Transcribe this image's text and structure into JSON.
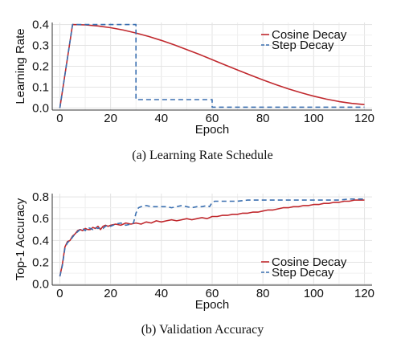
{
  "chart_data": [
    {
      "type": "line",
      "caption": "(a) Learning Rate Schedule",
      "xlabel": "Epoch",
      "ylabel": "Learning Rate",
      "xlim": [
        -3,
        123
      ],
      "ylim": [
        -0.01,
        0.41
      ],
      "xticks": [
        0,
        20,
        40,
        60,
        80,
        100,
        120
      ],
      "yticks": [
        0.0,
        0.1,
        0.2,
        0.3,
        0.4
      ],
      "yticklabels": [
        "0.0",
        "0.1",
        "0.2",
        "0.3",
        "0.4"
      ],
      "grid": true,
      "legend": "top-right",
      "series": [
        {
          "name": "Cosine Decay",
          "color": "#c0282d",
          "style": "solid",
          "x": [
            0,
            5,
            10,
            15,
            20,
            25,
            30,
            35,
            40,
            45,
            50,
            55,
            60,
            65,
            70,
            75,
            80,
            85,
            90,
            95,
            100,
            105,
            110,
            115,
            120
          ],
          "y": [
            0.0,
            0.4,
            0.3983,
            0.3933,
            0.3851,
            0.3738,
            0.3597,
            0.3429,
            0.3239,
            0.3029,
            0.2803,
            0.2565,
            0.232,
            0.2071,
            0.1823,
            0.158,
            0.1346,
            0.1124,
            0.0918,
            0.0731,
            0.0566,
            0.0424,
            0.0309,
            0.0221,
            0.0162
          ]
        },
        {
          "name": "Step Decay",
          "color": "#3a6fb0",
          "style": "dashed",
          "x": [
            0,
            5,
            30,
            30,
            60,
            60,
            120
          ],
          "y": [
            0.0,
            0.4,
            0.4,
            0.04,
            0.04,
            0.004,
            0.004
          ]
        }
      ]
    },
    {
      "type": "line",
      "caption": "(b) Validation Accuracy",
      "xlabel": "Epoch",
      "ylabel": "Top-1 Accuracy",
      "xlim": [
        -3,
        123
      ],
      "ylim": [
        -0.01,
        0.83
      ],
      "xticks": [
        0,
        20,
        40,
        60,
        80,
        100,
        120
      ],
      "yticks": [
        0.0,
        0.2,
        0.4,
        0.6,
        0.8
      ],
      "yticklabels": [
        "0.0",
        "0.2",
        "0.4",
        "0.6",
        "0.8"
      ],
      "grid": true,
      "legend": "bottom-right",
      "series": [
        {
          "name": "Cosine Decay",
          "color": "#c0282d",
          "style": "solid",
          "x": [
            0,
            1,
            2,
            3,
            4,
            5,
            6,
            7,
            8,
            9,
            10,
            11,
            12,
            13,
            14,
            15,
            16,
            17,
            18,
            19,
            20,
            22,
            24,
            26,
            28,
            30,
            32,
            34,
            36,
            38,
            40,
            42,
            44,
            46,
            48,
            50,
            52,
            54,
            56,
            58,
            60,
            62,
            64,
            66,
            68,
            70,
            72,
            74,
            76,
            78,
            80,
            82,
            84,
            86,
            88,
            90,
            92,
            94,
            96,
            98,
            100,
            102,
            104,
            106,
            108,
            110,
            112,
            114,
            116,
            118,
            120
          ],
          "y": [
            0.07,
            0.18,
            0.34,
            0.39,
            0.4,
            0.44,
            0.46,
            0.49,
            0.5,
            0.49,
            0.51,
            0.5,
            0.5,
            0.52,
            0.51,
            0.53,
            0.5,
            0.53,
            0.54,
            0.53,
            0.54,
            0.55,
            0.54,
            0.56,
            0.55,
            0.56,
            0.55,
            0.57,
            0.56,
            0.58,
            0.57,
            0.58,
            0.59,
            0.58,
            0.59,
            0.6,
            0.59,
            0.6,
            0.61,
            0.6,
            0.62,
            0.62,
            0.63,
            0.63,
            0.64,
            0.64,
            0.65,
            0.65,
            0.66,
            0.66,
            0.67,
            0.68,
            0.68,
            0.69,
            0.7,
            0.7,
            0.71,
            0.71,
            0.72,
            0.72,
            0.73,
            0.73,
            0.74,
            0.74,
            0.75,
            0.75,
            0.76,
            0.76,
            0.77,
            0.77,
            0.77
          ]
        },
        {
          "name": "Step Decay",
          "color": "#3a6fb0",
          "style": "dashed",
          "x": [
            0,
            1,
            2,
            3,
            4,
            5,
            6,
            7,
            8,
            9,
            10,
            11,
            12,
            13,
            14,
            15,
            16,
            17,
            18,
            19,
            20,
            22,
            24,
            26,
            28,
            29,
            30,
            31,
            32,
            34,
            36,
            38,
            40,
            42,
            44,
            46,
            48,
            50,
            52,
            54,
            56,
            58,
            59,
            60,
            61,
            62,
            66,
            70,
            74,
            78,
            82,
            86,
            90,
            94,
            98,
            102,
            106,
            110,
            114,
            118,
            120
          ],
          "y": [
            0.07,
            0.17,
            0.33,
            0.38,
            0.4,
            0.43,
            0.46,
            0.48,
            0.5,
            0.51,
            0.49,
            0.52,
            0.51,
            0.5,
            0.52,
            0.51,
            0.52,
            0.51,
            0.53,
            0.54,
            0.53,
            0.55,
            0.56,
            0.54,
            0.55,
            0.56,
            0.65,
            0.7,
            0.71,
            0.72,
            0.71,
            0.71,
            0.71,
            0.71,
            0.7,
            0.71,
            0.72,
            0.71,
            0.7,
            0.71,
            0.71,
            0.72,
            0.71,
            0.75,
            0.76,
            0.76,
            0.76,
            0.76,
            0.77,
            0.77,
            0.77,
            0.77,
            0.77,
            0.77,
            0.77,
            0.77,
            0.77,
            0.77,
            0.78,
            0.78,
            0.78
          ]
        }
      ]
    }
  ]
}
